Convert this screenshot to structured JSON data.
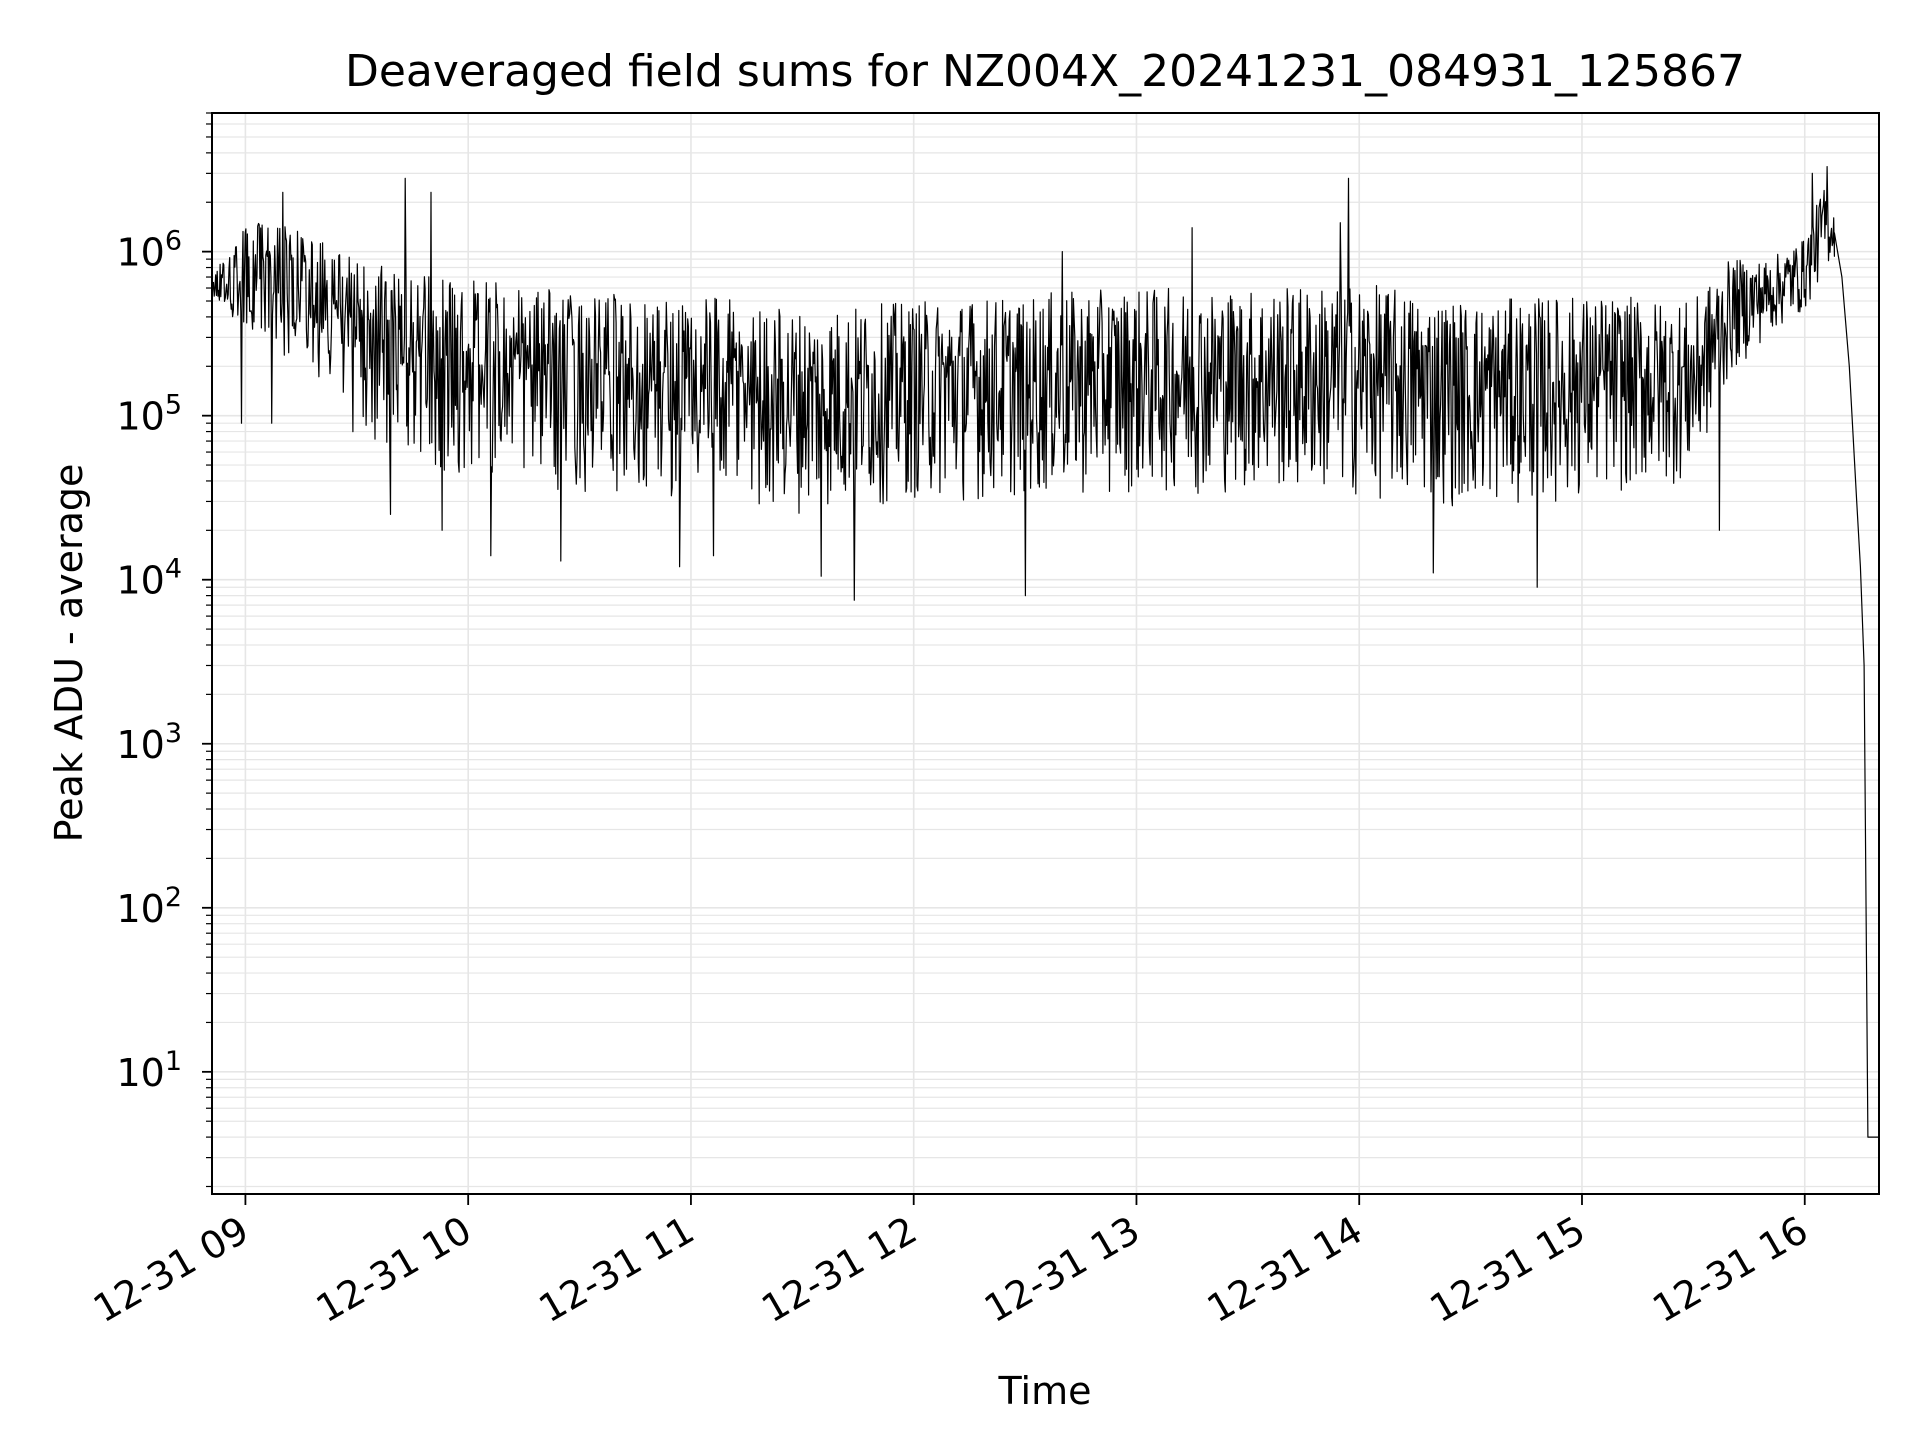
{
  "chart_data": {
    "type": "line",
    "title": "Deaveraged field sums for NZ004X_20241231_084931_125867",
    "xlabel": "Time",
    "ylabel": "Peak ADU - average",
    "yscale": "log",
    "grid": true,
    "xlim": [
      "2024-12-31T08:51",
      "2024-12-31T16:20"
    ],
    "ylim": [
      1.8,
      7000000
    ],
    "x_ticks": [
      {
        "value": "2024-12-31T09:00",
        "label": "12-31 09"
      },
      {
        "value": "2024-12-31T10:00",
        "label": "12-31 10"
      },
      {
        "value": "2024-12-31T11:00",
        "label": "12-31 11"
      },
      {
        "value": "2024-12-31T12:00",
        "label": "12-31 12"
      },
      {
        "value": "2024-12-31T13:00",
        "label": "12-31 13"
      },
      {
        "value": "2024-12-31T14:00",
        "label": "12-31 14"
      },
      {
        "value": "2024-12-31T15:00",
        "label": "12-31 15"
      },
      {
        "value": "2024-12-31T16:00",
        "label": "12-31 16"
      }
    ],
    "y_ticks": [
      {
        "value": 10,
        "base": "10",
        "exp": "1"
      },
      {
        "value": 100,
        "base": "10",
        "exp": "2"
      },
      {
        "value": 1000,
        "base": "10",
        "exp": "3"
      },
      {
        "value": 10000,
        "base": "10",
        "exp": "4"
      },
      {
        "value": 100000,
        "base": "10",
        "exp": "5"
      },
      {
        "value": 1000000,
        "base": "10",
        "exp": "6"
      }
    ],
    "series": [
      {
        "color": "#000000",
        "envelope": [
          {
            "t": "2024-12-31T08:51",
            "low": 450000,
            "high": 700000
          },
          {
            "t": "2024-12-31T09:00",
            "low": 250000,
            "high": 1500000
          },
          {
            "t": "2024-12-31T09:10",
            "low": 150000,
            "high": 1500000
          },
          {
            "t": "2024-12-31T09:20",
            "low": 120000,
            "high": 1200000
          },
          {
            "t": "2024-12-31T09:30",
            "low": 60000,
            "high": 900000
          },
          {
            "t": "2024-12-31T09:40",
            "low": 35000,
            "high": 800000
          },
          {
            "t": "2024-12-31T09:50",
            "low": 25000,
            "high": 700000
          },
          {
            "t": "2024-12-31T10:00",
            "low": 25000,
            "high": 700000
          },
          {
            "t": "2024-12-31T10:30",
            "low": 20000,
            "high": 550000
          },
          {
            "t": "2024-12-31T11:00",
            "low": 18000,
            "high": 550000
          },
          {
            "t": "2024-12-31T11:30",
            "low": 15000,
            "high": 450000
          },
          {
            "t": "2024-12-31T12:00",
            "low": 18000,
            "high": 500000
          },
          {
            "t": "2024-12-31T12:30",
            "low": 18000,
            "high": 550000
          },
          {
            "t": "2024-12-31T13:00",
            "low": 20000,
            "high": 600000
          },
          {
            "t": "2024-12-31T13:30",
            "low": 20000,
            "high": 600000
          },
          {
            "t": "2024-12-31T14:00",
            "low": 18000,
            "high": 650000
          },
          {
            "t": "2024-12-31T14:30",
            "low": 16000,
            "high": 500000
          },
          {
            "t": "2024-12-31T15:00",
            "low": 18000,
            "high": 550000
          },
          {
            "t": "2024-12-31T15:30",
            "low": 25000,
            "high": 500000
          },
          {
            "t": "2024-12-31T15:40",
            "low": 130000,
            "high": 900000
          },
          {
            "t": "2024-12-31T15:50",
            "low": 250000,
            "high": 900000
          },
          {
            "t": "2024-12-31T16:00",
            "low": 350000,
            "high": 1200000
          },
          {
            "t": "2024-12-31T16:05",
            "low": 600000,
            "high": 2500000
          },
          {
            "t": "2024-12-31T16:08",
            "low": 800000,
            "high": 1800000
          }
        ],
        "spikes": [
          {
            "t": "2024-12-31T08:51",
            "v": 500000
          },
          {
            "t": "2024-12-31T08:54",
            "v": 850000
          },
          {
            "t": "2024-12-31T08:59",
            "v": 90000
          },
          {
            "t": "2024-12-31T09:07",
            "v": 90000
          },
          {
            "t": "2024-12-31T09:10",
            "v": 2300000
          },
          {
            "t": "2024-12-31T09:29",
            "v": 80000
          },
          {
            "t": "2024-12-31T09:39",
            "v": 25000
          },
          {
            "t": "2024-12-31T09:43",
            "v": 2800000
          },
          {
            "t": "2024-12-31T09:53",
            "v": 20000
          },
          {
            "t": "2024-12-31T09:50",
            "v": 2300000
          },
          {
            "t": "2024-12-31T10:06",
            "v": 14000
          },
          {
            "t": "2024-12-31T10:25",
            "v": 13000
          },
          {
            "t": "2024-12-31T10:57",
            "v": 12000
          },
          {
            "t": "2024-12-31T11:06",
            "v": 14000
          },
          {
            "t": "2024-12-31T11:35",
            "v": 10500
          },
          {
            "t": "2024-12-31T11:44",
            "v": 7500
          },
          {
            "t": "2024-12-31T12:30",
            "v": 8000
          },
          {
            "t": "2024-12-31T12:40",
            "v": 1000000
          },
          {
            "t": "2024-12-31T13:15",
            "v": 1400000
          },
          {
            "t": "2024-12-31T13:55",
            "v": 1500000
          },
          {
            "t": "2024-12-31T13:57",
            "v": 2800000
          },
          {
            "t": "2024-12-31T14:20",
            "v": 11000
          },
          {
            "t": "2024-12-31T14:48",
            "v": 9000
          },
          {
            "t": "2024-12-31T15:37",
            "v": 20000
          },
          {
            "t": "2024-12-31T16:02",
            "v": 3000000
          },
          {
            "t": "2024-12-31T16:06",
            "v": 3300000
          }
        ],
        "tail": [
          {
            "t": "2024-12-31T16:08",
            "v": 1300000
          },
          {
            "t": "2024-12-31T16:10",
            "v": 700000
          },
          {
            "t": "2024-12-31T16:12",
            "v": 200000
          },
          {
            "t": "2024-12-31T16:14",
            "v": 30000
          },
          {
            "t": "2024-12-31T16:15",
            "v": 12000
          },
          {
            "t": "2024-12-31T16:16",
            "v": 3000
          },
          {
            "t": "2024-12-31T16:17",
            "v": 4
          },
          {
            "t": "2024-12-31T16:20",
            "v": 4
          }
        ]
      }
    ]
  }
}
